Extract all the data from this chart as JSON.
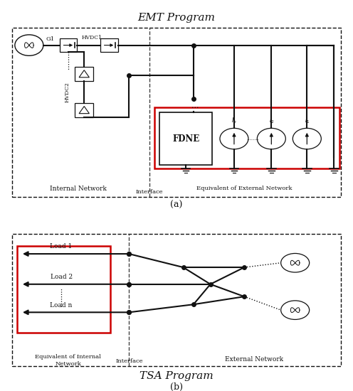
{
  "fig_width": 4.96,
  "fig_height": 5.5,
  "dpi": 100,
  "bg_color": "#ffffff",
  "title_a": "EMT Program",
  "title_b": "TSA Program",
  "label_a": "(a)",
  "label_b": "(b)",
  "line_color": "#111111",
  "red_color": "#cc0000",
  "dashed_color": "#444444"
}
